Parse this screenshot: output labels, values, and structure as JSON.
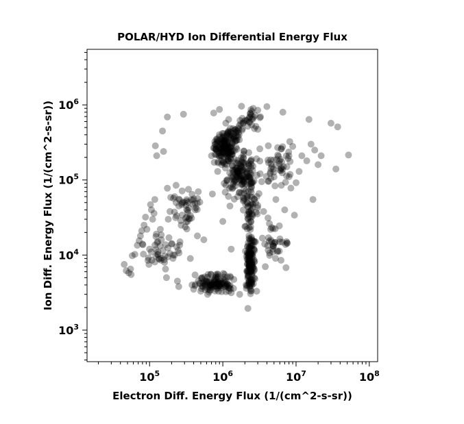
{
  "chart_data": {
    "type": "scatter",
    "title": "POLAR/HYD  Ion Differential Energy Flux",
    "xlabel": "Electron Diff. Energy Flux (1/(cm^2-s-sr))",
    "ylabel": "Ion Diff. Energy Flux (1/(cm^2-s-sr))",
    "x_scale": "log",
    "y_scale": "log",
    "xlim": [
      14000,
      130000000
    ],
    "ylim": [
      380,
      5500000
    ],
    "x_ticks": [
      {
        "value": 100000,
        "base": "10",
        "exp": "5"
      },
      {
        "value": 1000000,
        "base": "10",
        "exp": "6"
      },
      {
        "value": 10000000,
        "base": "10",
        "exp": "7"
      },
      {
        "value": 100000000,
        "base": "10",
        "exp": "8"
      }
    ],
    "y_ticks": [
      {
        "value": 1000,
        "base": "10",
        "exp": "3"
      },
      {
        "value": 10000,
        "base": "10",
        "exp": "4"
      },
      {
        "value": 100000,
        "base": "10",
        "exp": "5"
      },
      {
        "value": 1000000,
        "base": "10",
        "exp": "6"
      }
    ],
    "grid": false,
    "marker_color": "#000000",
    "marker_alpha": 0.3,
    "points": [
      [
        45000,
        7500
      ],
      [
        48000,
        6200
      ],
      [
        52000,
        5800
      ],
      [
        55000,
        6500
      ],
      [
        56000,
        5500
      ],
      [
        58000,
        9800
      ],
      [
        63000,
        10200
      ],
      [
        68000,
        13500
      ],
      [
        72000,
        15500
      ],
      [
        75000,
        18000
      ],
      [
        78000,
        21000
      ],
      [
        80000,
        14000
      ],
      [
        84000,
        25000
      ],
      [
        88000,
        32000
      ],
      [
        92000,
        22000
      ],
      [
        95000,
        8500
      ],
      [
        98000,
        7500
      ],
      [
        100000,
        12000
      ],
      [
        103000,
        47000
      ],
      [
        106000,
        40000
      ],
      [
        110000,
        30000
      ],
      [
        115000,
        36000
      ],
      [
        118000,
        55000
      ],
      [
        120000,
        285000
      ],
      [
        125000,
        210000
      ],
      [
        130000,
        11000
      ],
      [
        135000,
        9000
      ],
      [
        140000,
        22000
      ],
      [
        145000,
        16000
      ],
      [
        150000,
        450000
      ],
      [
        155000,
        240000
      ],
      [
        160000,
        8000
      ],
      [
        165000,
        6500
      ],
      [
        170000,
        5000
      ],
      [
        175000,
        690000
      ],
      [
        180000,
        30000
      ],
      [
        190000,
        38000
      ],
      [
        200000,
        14000
      ],
      [
        210000,
        10000
      ],
      [
        220000,
        60000
      ],
      [
        230000,
        85000
      ],
      [
        240000,
        4500
      ],
      [
        250000,
        3800
      ],
      [
        260000,
        15000
      ],
      [
        270000,
        25000
      ],
      [
        290000,
        750000
      ],
      [
        300000,
        50000
      ],
      [
        320000,
        32000
      ],
      [
        340000,
        75000
      ],
      [
        360000,
        9000
      ],
      [
        380000,
        4000
      ],
      [
        400000,
        3500
      ],
      [
        420000,
        40000
      ],
      [
        450000,
        18000
      ],
      [
        480000,
        4200
      ],
      [
        500000,
        3300
      ],
      [
        520000,
        5000
      ],
      [
        550000,
        16000
      ],
      [
        600000,
        4500
      ],
      [
        620000,
        3000
      ],
      [
        650000,
        3200
      ],
      [
        700000,
        210000
      ],
      [
        720000,
        65000
      ],
      [
        750000,
        780000
      ],
      [
        780000,
        300000
      ],
      [
        800000,
        4800
      ],
      [
        850000,
        130000
      ],
      [
        880000,
        4000
      ],
      [
        900000,
        870000
      ],
      [
        950000,
        210000
      ],
      [
        1000000,
        28000
      ],
      [
        1050000,
        3800
      ],
      [
        1100000,
        85000
      ],
      [
        1150000,
        310000
      ],
      [
        1200000,
        640000
      ],
      [
        1250000,
        45000
      ],
      [
        1300000,
        12000
      ],
      [
        1400000,
        3600
      ],
      [
        1500000,
        380000
      ],
      [
        1600000,
        60000
      ],
      [
        1700000,
        3000
      ],
      [
        1800000,
        960000
      ],
      [
        1900000,
        200000
      ],
      [
        2000000,
        24000
      ],
      [
        2100000,
        3600
      ],
      [
        2200000,
        1950
      ],
      [
        2300000,
        110000
      ],
      [
        2400000,
        6000
      ],
      [
        2500000,
        4000
      ],
      [
        2600000,
        900000
      ],
      [
        2700000,
        55000
      ],
      [
        2800000,
        15000
      ],
      [
        2900000,
        3300
      ],
      [
        3000000,
        850000
      ],
      [
        3200000,
        260000
      ],
      [
        3400000,
        95000
      ],
      [
        3600000,
        38000
      ],
      [
        3800000,
        7000
      ],
      [
        4000000,
        950000
      ],
      [
        4200000,
        170000
      ],
      [
        4500000,
        22000
      ],
      [
        4800000,
        12000
      ],
      [
        5000000,
        110000
      ],
      [
        5300000,
        55000
      ],
      [
        5600000,
        270000
      ],
      [
        6000000,
        15000
      ],
      [
        6300000,
        85000
      ],
      [
        6600000,
        800000
      ],
      [
        7000000,
        40000
      ],
      [
        7500000,
        150000
      ],
      [
        8000000,
        210000
      ],
      [
        8500000,
        78000
      ],
      [
        9000000,
        280000
      ],
      [
        9500000,
        34000
      ],
      [
        10000000,
        92000
      ],
      [
        11000000,
        130000
      ],
      [
        12000000,
        210000
      ],
      [
        14000000,
        180000
      ],
      [
        15000000,
        640000
      ],
      [
        16000000,
        300000
      ],
      [
        17000000,
        55000
      ],
      [
        18000000,
        250000
      ],
      [
        20000000,
        160000
      ],
      [
        22000000,
        210000
      ],
      [
        30000000,
        570000
      ],
      [
        35000000,
        140000
      ],
      [
        37000000,
        510000
      ],
      [
        52000000,
        215000
      ]
    ],
    "clusters": [
      {
        "x_range": [
          700000,
          1500000
        ],
        "y_range": [
          150000,
          450000
        ],
        "count": 120
      },
      {
        "x_range": [
          1000000,
          3000000
        ],
        "y_range": [
          50000,
          300000
        ],
        "count": 140
      },
      {
        "x_range": [
          1800000,
          3200000
        ],
        "y_range": [
          20000,
          120000
        ],
        "count": 60
      },
      {
        "x_range": [
          2000000,
          2800000
        ],
        "y_range": [
          3000,
          20000
        ],
        "count": 140
      },
      {
        "x_range": [
          400000,
          1500000
        ],
        "y_range": [
          3000,
          6000
        ],
        "count": 110
      },
      {
        "x_range": [
          150000,
          600000
        ],
        "y_range": [
          20000,
          80000
        ],
        "count": 45
      },
      {
        "x_range": [
          70000,
          300000
        ],
        "y_range": [
          6000,
          20000
        ],
        "count": 35
      },
      {
        "x_range": [
          3000000,
          8000000
        ],
        "y_range": [
          5000,
          40000
        ],
        "count": 35
      },
      {
        "x_range": [
          3000000,
          10000000
        ],
        "y_range": [
          60000,
          400000
        ],
        "count": 45
      },
      {
        "x_range": [
          1500000,
          3500000
        ],
        "y_range": [
          400000,
          1000000
        ],
        "count": 30
      },
      {
        "x_range": [
          1000000,
          2000000
        ],
        "y_range": [
          300000,
          600000
        ],
        "count": 40
      }
    ]
  }
}
